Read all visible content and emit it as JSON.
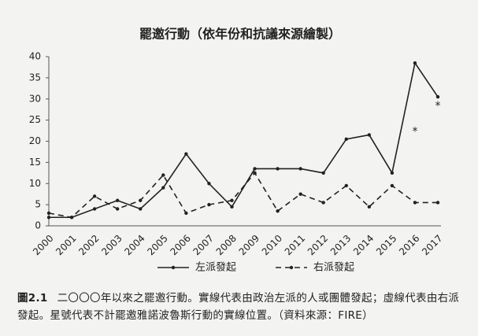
{
  "chart_data": {
    "type": "line",
    "title": "罷邀行動（依年份和抗議來源繪製）",
    "categories": [
      "2000",
      "2001",
      "2002",
      "2003",
      "2004",
      "2005",
      "2006",
      "2007",
      "2008",
      "2009",
      "2010",
      "2011",
      "2012",
      "2013",
      "2014",
      "2015",
      "2016",
      "2017"
    ],
    "series": [
      {
        "name": "左派發起",
        "color": "#222222",
        "line_style": "solid",
        "values": [
          2,
          2,
          4,
          6,
          4,
          9,
          17,
          10,
          4.5,
          13.5,
          13.5,
          13.5,
          12.5,
          20.5,
          21.5,
          12.5,
          38.5,
          30.5
        ]
      },
      {
        "name": "右派發起",
        "color": "#222222",
        "line_style": "dashed",
        "values": [
          3,
          2,
          7,
          4,
          6,
          12,
          3,
          5,
          6,
          12.5,
          3.5,
          7.5,
          5.5,
          9.5,
          4.5,
          9.5,
          5.5,
          5.5
        ]
      }
    ],
    "annotations": [
      {
        "text": "*",
        "x": "2016",
        "y": 23
      },
      {
        "text": "*",
        "x": "2017",
        "y": 29
      }
    ],
    "ylim": [
      0,
      40
    ],
    "yticks": [
      0,
      5,
      10,
      15,
      20,
      25,
      30,
      35,
      40
    ],
    "grid": false,
    "legend": "bottom",
    "caption": {
      "label": "圖2.1",
      "text": "二〇〇〇年以來之罷邀行動。實線代表由政治左派的人或團體發起；虛線代表由右派發起。星號代表不計罷邀雅諾波魯斯行動的實線位置。（資料來源：FIRE）"
    }
  }
}
